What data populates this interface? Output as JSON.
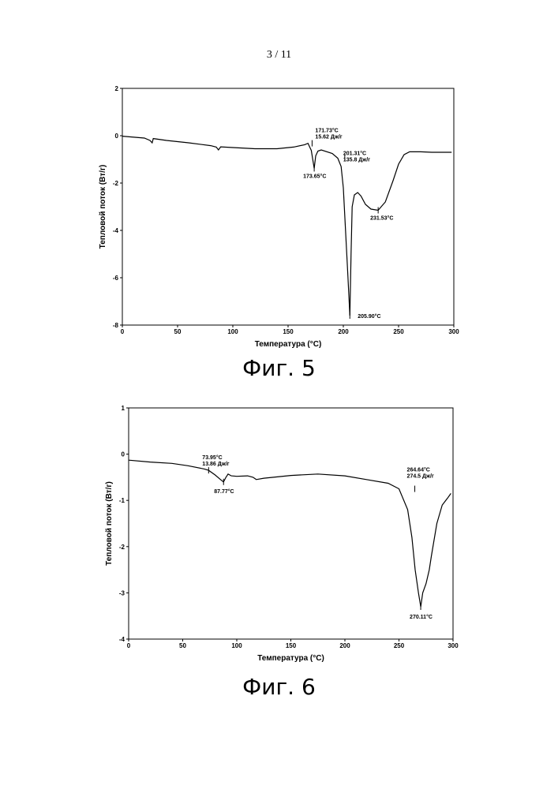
{
  "page": {
    "number": "3 / 11"
  },
  "figures": [
    {
      "caption": "Фиг. 5"
    },
    {
      "caption": "Фиг. 6"
    }
  ],
  "chart_data": [
    {
      "type": "line",
      "xlabel": "Температура (°C)",
      "ylabel": "Тепловой поток (Вт/г)",
      "xlim": [
        0,
        300
      ],
      "ylim": [
        -8,
        2
      ],
      "xticks": [
        0,
        50,
        100,
        150,
        200,
        250,
        300
      ],
      "yticks": [
        2,
        0,
        -2,
        -4,
        -6,
        -8
      ],
      "grid": false,
      "color": "#000000",
      "series": [
        {
          "points": [
            [
              0,
              -0.02
            ],
            [
              20,
              -0.1
            ],
            [
              25,
              -0.2
            ],
            [
              27,
              -0.3
            ],
            [
              28,
              -0.12
            ],
            [
              40,
              -0.2
            ],
            [
              60,
              -0.3
            ],
            [
              80,
              -0.42
            ],
            [
              85,
              -0.48
            ],
            [
              87,
              -0.6
            ],
            [
              89,
              -0.47
            ],
            [
              100,
              -0.5
            ],
            [
              120,
              -0.55
            ],
            [
              140,
              -0.55
            ],
            [
              155,
              -0.48
            ],
            [
              165,
              -0.38
            ],
            [
              168,
              -0.32
            ],
            [
              171,
              -0.62
            ],
            [
              173.65,
              -1.38
            ],
            [
              175,
              -0.85
            ],
            [
              177,
              -0.65
            ],
            [
              180,
              -0.6
            ],
            [
              190,
              -0.75
            ],
            [
              195,
              -0.95
            ],
            [
              198,
              -1.3
            ],
            [
              200,
              -2.2
            ],
            [
              202,
              -4.0
            ],
            [
              204,
              -5.8
            ],
            [
              205.9,
              -7.6
            ],
            [
              207,
              -5.0
            ],
            [
              208,
              -3.0
            ],
            [
              210,
              -2.5
            ],
            [
              213,
              -2.4
            ],
            [
              216,
              -2.55
            ],
            [
              220,
              -2.9
            ],
            [
              225,
              -3.1
            ],
            [
              231.53,
              -3.15
            ],
            [
              238,
              -2.8
            ],
            [
              245,
              -1.9
            ],
            [
              250,
              -1.2
            ],
            [
              255,
              -0.8
            ],
            [
              260,
              -0.68
            ],
            [
              270,
              -0.68
            ],
            [
              280,
              -0.7
            ],
            [
              298,
              -0.7
            ]
          ]
        }
      ],
      "annotations": [
        {
          "x": 171.73,
          "y": -0.32,
          "dx": 4,
          "dy": -14,
          "lines": [
            "171.73°C",
            "15.62 Дж/г"
          ]
        },
        {
          "x": 173.65,
          "y": -1.38,
          "dx": -14,
          "dy": 12,
          "lines": [
            "173.65°C"
          ]
        },
        {
          "x": 201.31,
          "y": -0.95,
          "dx": -2,
          "dy": -4,
          "lines": [
            "201.31°C",
            "135.8 Дж/г"
          ]
        },
        {
          "x": 205.9,
          "y": -7.6,
          "dx": 10,
          "dy": 3,
          "lines": [
            "205.90°C"
          ]
        },
        {
          "x": 231.53,
          "y": -3.15,
          "dx": -10,
          "dy": 12,
          "lines": [
            "231.53°C"
          ]
        }
      ]
    },
    {
      "type": "line",
      "xlabel": "Температура (°C)",
      "ylabel": "Тепловой поток (Вт/г)",
      "xlim": [
        0,
        300
      ],
      "ylim": [
        -4,
        1
      ],
      "xticks": [
        0,
        50,
        100,
        150,
        200,
        250,
        300
      ],
      "yticks": [
        1,
        0,
        -1,
        -2,
        -3,
        -4
      ],
      "grid": false,
      "color": "#000000",
      "series": [
        {
          "points": [
            [
              0,
              -0.13
            ],
            [
              20,
              -0.17
            ],
            [
              40,
              -0.2
            ],
            [
              55,
              -0.25
            ],
            [
              70,
              -0.32
            ],
            [
              73.95,
              -0.35
            ],
            [
              80,
              -0.45
            ],
            [
              85,
              -0.55
            ],
            [
              87.77,
              -0.6
            ],
            [
              90,
              -0.5
            ],
            [
              92,
              -0.43
            ],
            [
              95,
              -0.47
            ],
            [
              100,
              -0.48
            ],
            [
              110,
              -0.47
            ],
            [
              115,
              -0.5
            ],
            [
              118,
              -0.55
            ],
            [
              125,
              -0.52
            ],
            [
              150,
              -0.46
            ],
            [
              175,
              -0.43
            ],
            [
              200,
              -0.47
            ],
            [
              220,
              -0.55
            ],
            [
              240,
              -0.63
            ],
            [
              250,
              -0.75
            ],
            [
              258,
              -1.2
            ],
            [
              262,
              -1.8
            ],
            [
              265,
              -2.5
            ],
            [
              268,
              -3.0
            ],
            [
              270.11,
              -3.3
            ],
            [
              272,
              -3.0
            ],
            [
              275,
              -2.8
            ],
            [
              278,
              -2.5
            ],
            [
              280,
              -2.2
            ],
            [
              285,
              -1.5
            ],
            [
              290,
              -1.1
            ],
            [
              295,
              -0.95
            ],
            [
              298,
              -0.85
            ]
          ]
        }
      ],
      "annotations": [
        {
          "x": 73.95,
          "y": -0.35,
          "dx": -8,
          "dy": -14,
          "lines": [
            "73.95°C",
            "13.86 Дж/г"
          ]
        },
        {
          "x": 87.77,
          "y": -0.6,
          "dx": -12,
          "dy": 14,
          "lines": [
            "87.77°C"
          ]
        },
        {
          "x": 264.64,
          "y": -0.75,
          "dx": -10,
          "dy": -22,
          "lines": [
            "264.64°C",
            "274.5 Дж/г"
          ]
        },
        {
          "x": 270.11,
          "y": -3.3,
          "dx": -14,
          "dy": 15,
          "lines": [
            "270.11°C"
          ]
        }
      ]
    }
  ]
}
